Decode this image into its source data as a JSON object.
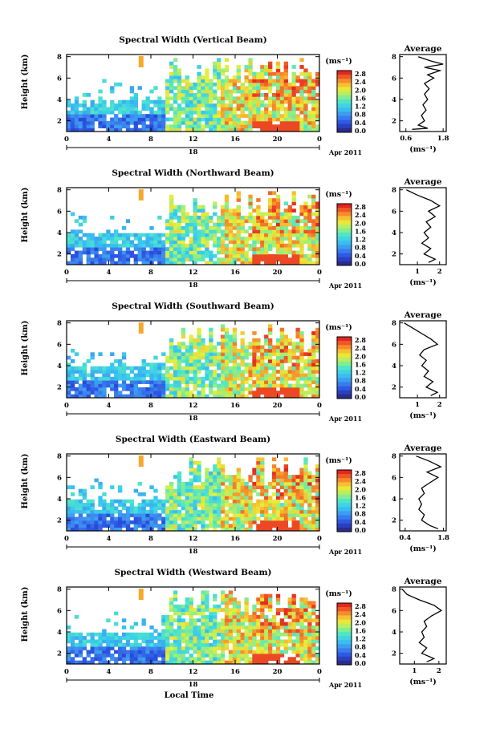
{
  "chart_data": [
    {
      "type": "heatmap",
      "title": "Spectral Width (Vertical Beam)",
      "xlabel": "",
      "ylabel": "Height (km)",
      "x_ticks": [
        "0",
        "4",
        "8",
        "12",
        "16",
        "20",
        "0"
      ],
      "y_ticks": [
        "2",
        "4",
        "6",
        "8"
      ],
      "date_labels": {
        "day": "18",
        "suffix": "Apr 2011"
      },
      "colorbar": {
        "unit": "(ms⁻¹)",
        "ticks": [
          "2.8",
          "2.4",
          "2.0",
          "1.6",
          "1.2",
          "0.8",
          "0.4",
          "0.0"
        ],
        "range": [
          0.0,
          3.0
        ]
      },
      "average": {
        "title": "Average",
        "xlabel": "(ms⁻¹)",
        "x_ticks": [
          "0.6",
          "1.8"
        ],
        "xlim": [
          0.4,
          1.9
        ],
        "y_ticks": [
          "2",
          "4",
          "6",
          "8"
        ],
        "profile": [
          [
            0.8,
            1.2
          ],
          [
            1.3,
            1.3
          ],
          [
            1.0,
            1.6
          ],
          [
            1.2,
            2.0
          ],
          [
            1.1,
            2.5
          ],
          [
            1.25,
            3.0
          ],
          [
            1.15,
            3.5
          ],
          [
            1.3,
            4.0
          ],
          [
            1.2,
            4.5
          ],
          [
            1.35,
            5.0
          ],
          [
            1.2,
            5.5
          ],
          [
            1.5,
            6.0
          ],
          [
            1.3,
            6.3
          ],
          [
            1.7,
            6.7
          ],
          [
            1.2,
            7.0
          ],
          [
            1.8,
            7.3
          ],
          [
            1.4,
            7.6
          ],
          [
            1.0,
            8.0
          ]
        ]
      }
    },
    {
      "type": "heatmap",
      "title": "Spectral Width (Northward Beam)",
      "xlabel": "",
      "ylabel": "Height (km)",
      "x_ticks": [
        "0",
        "4",
        "8",
        "12",
        "16",
        "20",
        "0"
      ],
      "y_ticks": [
        "2",
        "4",
        "6",
        "8"
      ],
      "date_labels": {
        "day": "18",
        "suffix": "Apr 2011"
      },
      "colorbar": {
        "unit": "(ms⁻¹)",
        "ticks": [
          "2.8",
          "2.4",
          "2.0",
          "1.6",
          "1.2",
          "0.8",
          "0.4",
          "0.0"
        ],
        "range": [
          0.0,
          3.0
        ]
      },
      "average": {
        "title": "Average",
        "xlabel": "(ms⁻¹)",
        "x_ticks": [
          "1",
          "2"
        ],
        "xlim": [
          0.2,
          2.3
        ],
        "y_ticks": [
          "2",
          "4",
          "6",
          "8"
        ],
        "profile": [
          [
            1.5,
            1.2
          ],
          [
            1.8,
            1.5
          ],
          [
            1.3,
            2.0
          ],
          [
            1.6,
            2.5
          ],
          [
            1.2,
            3.0
          ],
          [
            1.5,
            3.5
          ],
          [
            1.3,
            4.0
          ],
          [
            1.6,
            4.5
          ],
          [
            1.4,
            5.0
          ],
          [
            1.8,
            5.5
          ],
          [
            1.5,
            6.0
          ],
          [
            2.0,
            6.5
          ],
          [
            1.6,
            7.0
          ],
          [
            1.0,
            7.5
          ],
          [
            0.5,
            8.0
          ]
        ]
      }
    },
    {
      "type": "heatmap",
      "title": "Spectral Width (Southward Beam)",
      "xlabel": "",
      "ylabel": "Height (km)",
      "x_ticks": [
        "0",
        "4",
        "8",
        "12",
        "16",
        "20",
        "0"
      ],
      "y_ticks": [
        "2",
        "4",
        "6",
        "8"
      ],
      "date_labels": {
        "day": "18",
        "suffix": "Apr 2011"
      },
      "colorbar": {
        "unit": "(ms⁻¹)",
        "ticks": [
          "2.8",
          "2.4",
          "2.0",
          "1.6",
          "1.2",
          "0.8",
          "0.4",
          "0.0"
        ],
        "range": [
          0.0,
          3.0
        ]
      },
      "average": {
        "title": "Average",
        "xlabel": "(ms⁻¹)",
        "x_ticks": [
          "1",
          "2"
        ],
        "xlim": [
          0.2,
          2.3
        ],
        "y_ticks": [
          "2",
          "4",
          "6",
          "8"
        ],
        "profile": [
          [
            1.6,
            1.2
          ],
          [
            1.9,
            1.5
          ],
          [
            1.4,
            2.0
          ],
          [
            1.7,
            2.5
          ],
          [
            1.3,
            3.0
          ],
          [
            1.5,
            3.5
          ],
          [
            1.2,
            4.0
          ],
          [
            1.4,
            4.5
          ],
          [
            1.1,
            5.0
          ],
          [
            1.3,
            5.5
          ],
          [
            1.9,
            6.0
          ],
          [
            1.6,
            6.5
          ],
          [
            1.2,
            7.0
          ],
          [
            0.8,
            7.5
          ],
          [
            0.4,
            8.0
          ]
        ]
      }
    },
    {
      "type": "heatmap",
      "title": "Spectral Width (Eastward Beam)",
      "xlabel": "",
      "ylabel": "Height (km)",
      "x_ticks": [
        "0",
        "4",
        "8",
        "12",
        "16",
        "20",
        "0"
      ],
      "y_ticks": [
        "2",
        "4",
        "6",
        "8"
      ],
      "date_labels": {
        "day": "18",
        "suffix": "Apr 2011"
      },
      "colorbar": {
        "unit": "(ms⁻¹)",
        "ticks": [
          "2.8",
          "2.4",
          "2.0",
          "1.6",
          "1.2",
          "0.8",
          "0.4",
          "0.0"
        ],
        "range": [
          0.0,
          3.0
        ]
      },
      "average": {
        "title": "Average",
        "xlabel": "(ms⁻¹)",
        "x_ticks": [
          "0.4",
          "1.8"
        ],
        "xlim": [
          0.2,
          1.9
        ],
        "y_ticks": [
          "2",
          "4",
          "6",
          "8"
        ],
        "profile": [
          [
            1.6,
            1.2
          ],
          [
            1.3,
            1.5
          ],
          [
            1.0,
            2.0
          ],
          [
            1.1,
            2.5
          ],
          [
            0.9,
            3.0
          ],
          [
            1.0,
            3.5
          ],
          [
            0.9,
            4.0
          ],
          [
            1.1,
            4.5
          ],
          [
            1.0,
            5.0
          ],
          [
            1.3,
            5.5
          ],
          [
            1.6,
            6.0
          ],
          [
            1.2,
            6.5
          ],
          [
            1.7,
            7.0
          ],
          [
            1.3,
            7.5
          ],
          [
            0.8,
            8.0
          ]
        ]
      }
    },
    {
      "type": "heatmap",
      "title": "Spectral Width (Westward Beam)",
      "xlabel": "Local Time",
      "ylabel": "Height (km)",
      "x_ticks": [
        "0",
        "4",
        "8",
        "12",
        "16",
        "20",
        "0"
      ],
      "y_ticks": [
        "2",
        "4",
        "6",
        "8"
      ],
      "date_labels": {
        "day": "18",
        "suffix": "Apr 2011"
      },
      "colorbar": {
        "unit": "(ms⁻¹)",
        "ticks": [
          "2.8",
          "2.4",
          "2.0",
          "1.6",
          "1.2",
          "0.8",
          "0.4",
          "0.0"
        ],
        "range": [
          0.0,
          3.0
        ]
      },
      "average": {
        "title": "Average",
        "xlabel": "(ms⁻¹)",
        "x_ticks": [
          "1",
          "2"
        ],
        "xlim": [
          0.4,
          2.3
        ],
        "y_ticks": [
          "2",
          "4",
          "6",
          "8"
        ],
        "profile": [
          [
            1.5,
            1.2
          ],
          [
            1.8,
            1.5
          ],
          [
            1.3,
            2.0
          ],
          [
            1.5,
            2.5
          ],
          [
            1.2,
            3.0
          ],
          [
            1.4,
            3.5
          ],
          [
            1.3,
            4.0
          ],
          [
            1.5,
            4.5
          ],
          [
            1.4,
            5.0
          ],
          [
            1.7,
            5.5
          ],
          [
            2.1,
            6.0
          ],
          [
            1.8,
            6.5
          ],
          [
            1.2,
            7.0
          ],
          [
            0.7,
            7.5
          ],
          [
            0.5,
            8.0
          ]
        ]
      }
    }
  ]
}
